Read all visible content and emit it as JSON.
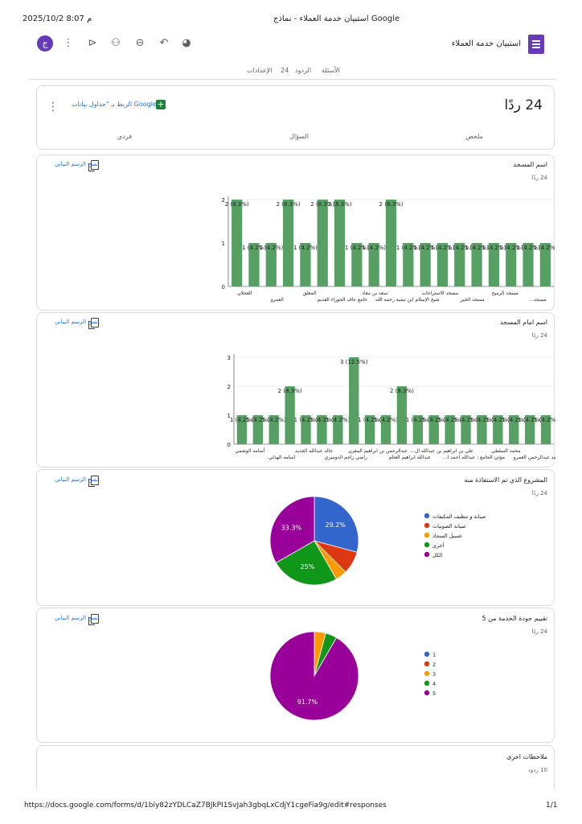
{
  "print_header": {
    "datetime": "2025/10/2 8:07 م",
    "title": "استبيان خدمة العملاء - نماذج Google"
  },
  "print_footer": {
    "url": "https://docs.google.com/forms/d/1biy82zYDLCaZ7BJkPI1SvJah3gbqLxCdjY1cgeFia9g/edit#responses",
    "page": "1/1"
  },
  "app": {
    "form_title": "استبيان خدمة العملاء",
    "avatar_letter": "ج",
    "colors": {
      "accent": "#673ab7",
      "link": "#1a73e8",
      "bar": "#57a064"
    }
  },
  "toolbar_icons": [
    "palette-icon",
    "undo-icon",
    "link-icon",
    "add-collaborator-icon",
    "preview-icon",
    "more-vert-icon"
  ],
  "tabs": {
    "questions": "الأسئلة",
    "responses": "الردود",
    "responses_count": "24",
    "settings": "الإعدادات"
  },
  "summary_card": {
    "responses_title": "24 ردًا",
    "link_sheets": "الربط بـ \"جداول بيانات Google\"",
    "subtabs": {
      "summary": "ملخص",
      "question": "السؤال",
      "individual": "فردي"
    }
  },
  "copy_chart_label": "نسخ الرسم البياني",
  "questions": [
    {
      "title": "اسم المسجد",
      "count": "24 ردًا"
    },
    {
      "title": "اسم امام المسجد",
      "count": "24 ردًا"
    },
    {
      "title": "المشروع الذي تم الاستفادة منه",
      "count": "24 ردًا"
    },
    {
      "title": "تقييم جودة الخدمة من 5",
      "count": "24 ردًا"
    },
    {
      "title": "ملاحظات اخرى",
      "count": "10 ردود"
    }
  ],
  "chart_data": [
    {
      "type": "bar",
      "title": "اسم المسجد",
      "ylim": [
        0,
        2
      ],
      "yticks": [
        "0",
        "1",
        "2"
      ],
      "values": [
        2,
        1,
        1,
        2,
        1,
        2,
        2,
        1,
        1,
        2,
        1,
        1,
        1,
        1,
        1,
        1,
        1,
        1,
        1
      ],
      "bar_labels": [
        "2 (8.3%)",
        "1 (4.2%)",
        "1 (4.2%)",
        "2 (8.3%)",
        "1 (4.2%)",
        "2 (8.3%)",
        "2 (8.3%)",
        "1 (4.2%)",
        "1 (4.2%)",
        "2 (8.3%)",
        "1 (4.2%)",
        "1 (4.2%)",
        "1 (4.2%)",
        "1 (4.2%)",
        "1 (4.2%)",
        "1 (4.2%)",
        "1 (4.2%)",
        "1 (4.2%)",
        "1 (4.2%)"
      ],
      "category_labels": [
        "العجلان",
        "العمرو",
        "المعلق",
        "جامع عاف الجوزاء القديم",
        "سعد بن معاذ",
        "شيخ الإسلام ابن تيمية رحمه الله",
        "مسجد الاستراحات",
        "مسجد الخير",
        "مسجد الرميح",
        "مسجد..."
      ]
    },
    {
      "type": "bar",
      "title": "اسم امام المسجد",
      "ylim": [
        0,
        3
      ],
      "yticks": [
        "0",
        "1",
        "2",
        "3"
      ],
      "values": [
        1,
        1,
        1,
        2,
        1,
        1,
        1,
        3,
        1,
        1,
        2,
        1,
        1,
        1,
        1,
        1,
        1,
        1,
        1,
        1
      ],
      "bar_labels": [
        "1 (4.2%)",
        "1 (4.2%)",
        "1 (4.2%)",
        "2 (8.3%)",
        "1 (4.2%)",
        "1 (4.2%)",
        "1 (4.2%)",
        "3 (12.5%)",
        "1 (4.2%)",
        "1 (4.2%)",
        "2 (8.3%)",
        "1 (4.2%)",
        "1 (4.2%)",
        "1 (4.2%)",
        "1 (4.2%)",
        "1 (4.2%)",
        "1 (4.2%)",
        "1 (4.2%)",
        "1 (4.2%)",
        "1 (4.2%)"
      ],
      "category_labels": [
        "أسامة الوشمي",
        "اسامه الهذلي",
        "خالد عبدالله الجديد",
        "راضي زاحم الدوسري",
        "عبدالرحمن بن ابراهيم المقرن",
        "عبدالله ابراهيم العثام",
        "علي بن ابراهيم بن عبدالله ال...",
        "مؤذن الجامع : عبدالله احمد ا...",
        "محمد السلطي",
        "محمد عبدالرحمن العمرو"
      ]
    },
    {
      "type": "pie",
      "title": "المشروع الذي تم الاستفادة منه",
      "labels": [
        "صيانة و تنظيف المكيفات",
        "صيانة الصوتيات",
        "غسيل السجاد",
        "أخرى",
        "الكل"
      ],
      "values": [
        29.2,
        8.3,
        4.2,
        25,
        33.3
      ],
      "slice_labels": [
        "29.2%",
        "",
        "",
        "25%",
        "33.3%"
      ],
      "colors": [
        "#3366cc",
        "#dc3912",
        "#ff9900",
        "#109618",
        "#990099"
      ]
    },
    {
      "type": "pie",
      "title": "تقييم جودة الخدمة من 5",
      "labels": [
        "1",
        "2",
        "3",
        "4",
        "5"
      ],
      "values": [
        0,
        0,
        4.2,
        4.2,
        91.7
      ],
      "slice_labels": [
        "",
        "",
        "",
        "",
        "91.7%"
      ],
      "colors": [
        "#3366cc",
        "#dc3912",
        "#ff9900",
        "#109618",
        "#990099"
      ]
    }
  ]
}
